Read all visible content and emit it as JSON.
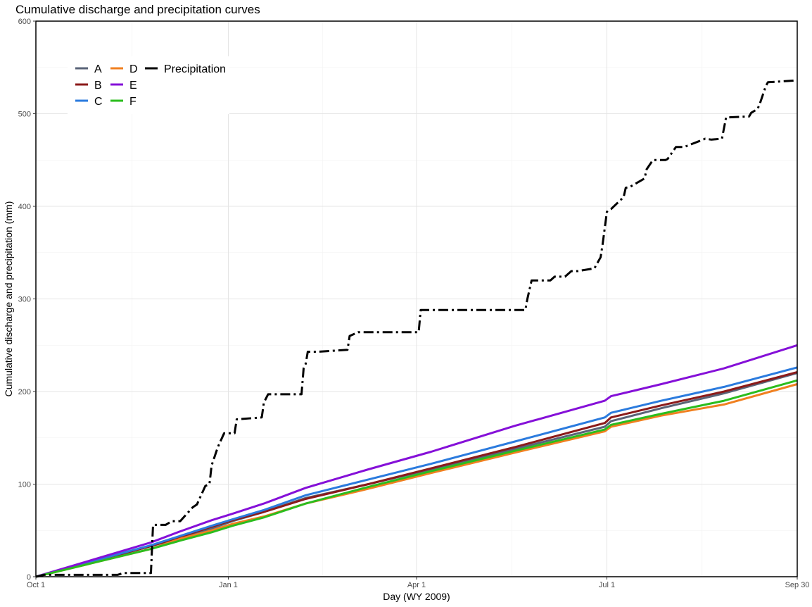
{
  "chart_data": {
    "type": "line",
    "title": "Cumulative discharge and precipitation curves",
    "xlabel": "Day (WY 2009)",
    "ylabel": "Cumulative discharge and precipitation (mm)",
    "xlim": [
      1,
      365
    ],
    "ylim": [
      0,
      600
    ],
    "x_ticks": [
      {
        "day": 1,
        "label": "Oct 1"
      },
      {
        "day": 93,
        "label": "Jan 1"
      },
      {
        "day": 183,
        "label": "Apr 1"
      },
      {
        "day": 274,
        "label": "Jul 1"
      },
      {
        "day": 365,
        "label": "Sep 30"
      }
    ],
    "y_ticks": [
      0,
      100,
      200,
      300,
      400,
      500,
      600
    ],
    "grid": true,
    "legend_position": "top-left",
    "series": [
      {
        "name": "A",
        "color": "#5a6478",
        "style": "solid",
        "x": [
          1,
          56,
          70,
          85,
          95,
          110,
          130,
          160,
          190,
          230,
          273,
          276,
          300,
          330,
          365
        ],
        "y": [
          0,
          33,
          42,
          52,
          60,
          70,
          85,
          100,
          116,
          138,
          162,
          168,
          182,
          198,
          220
        ]
      },
      {
        "name": "B",
        "color": "#8b1a1a",
        "style": "solid",
        "x": [
          1,
          56,
          70,
          85,
          95,
          110,
          130,
          160,
          190,
          230,
          273,
          276,
          300,
          330,
          365
        ],
        "y": [
          0,
          33,
          43,
          54,
          61,
          70,
          84,
          100,
          117,
          140,
          166,
          172,
          185,
          200,
          221
        ]
      },
      {
        "name": "C",
        "color": "#2b7bde",
        "style": "solid",
        "x": [
          1,
          56,
          70,
          85,
          95,
          110,
          130,
          160,
          190,
          230,
          273,
          276,
          300,
          330,
          365
        ],
        "y": [
          0,
          34,
          44,
          55,
          62,
          72,
          88,
          105,
          122,
          146,
          172,
          177,
          190,
          205,
          226
        ]
      },
      {
        "name": "D",
        "color": "#f08020",
        "style": "solid",
        "x": [
          1,
          56,
          70,
          85,
          95,
          110,
          130,
          160,
          190,
          230,
          273,
          276,
          300,
          330,
          365
        ],
        "y": [
          0,
          30,
          41,
          50,
          57,
          65,
          79,
          95,
          112,
          134,
          157,
          162,
          174,
          186,
          208
        ]
      },
      {
        "name": "E",
        "color": "#8510d8",
        "style": "solid",
        "x": [
          1,
          56,
          70,
          85,
          95,
          110,
          130,
          160,
          190,
          230,
          273,
          276,
          300,
          330,
          365
        ],
        "y": [
          0,
          37,
          49,
          61,
          68,
          79,
          96,
          116,
          135,
          163,
          190,
          195,
          208,
          225,
          250
        ]
      },
      {
        "name": "F",
        "color": "#2bbd1e",
        "style": "solid",
        "x": [
          1,
          56,
          70,
          85,
          95,
          110,
          130,
          160,
          190,
          230,
          273,
          276,
          300,
          330,
          365
        ],
        "y": [
          0,
          30,
          39,
          48,
          55,
          64,
          79,
          97,
          114,
          136,
          159,
          164,
          176,
          190,
          212
        ]
      },
      {
        "name": "Precipitation",
        "color": "#000000",
        "style": "dashdot",
        "x": [
          1,
          5,
          40,
          43,
          56,
          57,
          63,
          66,
          70,
          76,
          78,
          82,
          84,
          85,
          88,
          91,
          92,
          96,
          97,
          109,
          110,
          112,
          128,
          129,
          130,
          131,
          136,
          150,
          151,
          155,
          184,
          185,
          235,
          236,
          238,
          247,
          249,
          254,
          257,
          260,
          268,
          271,
          272,
          274,
          275,
          276,
          282,
          283,
          285,
          292,
          293,
          296,
          302,
          303,
          307,
          311,
          312,
          320,
          321,
          324,
          329,
          331,
          342,
          343,
          346,
          347,
          350,
          351,
          365
        ],
        "y": [
          0,
          2,
          2,
          4,
          4,
          56,
          56,
          60,
          60,
          75,
          78,
          98,
          100,
          120,
          140,
          155,
          155,
          155,
          170,
          172,
          188,
          197,
          197,
          225,
          230,
          243,
          243,
          245,
          260,
          264,
          264,
          288,
          288,
          300,
          320,
          320,
          324,
          324,
          330,
          330,
          333,
          345,
          360,
          394,
          396,
          397,
          410,
          420,
          421,
          430,
          440,
          450,
          450,
          451,
          464,
          464,
          465,
          472,
          473,
          472,
          473,
          496,
          497,
          501,
          505,
          510,
          530,
          534,
          536
        ]
      }
    ]
  }
}
